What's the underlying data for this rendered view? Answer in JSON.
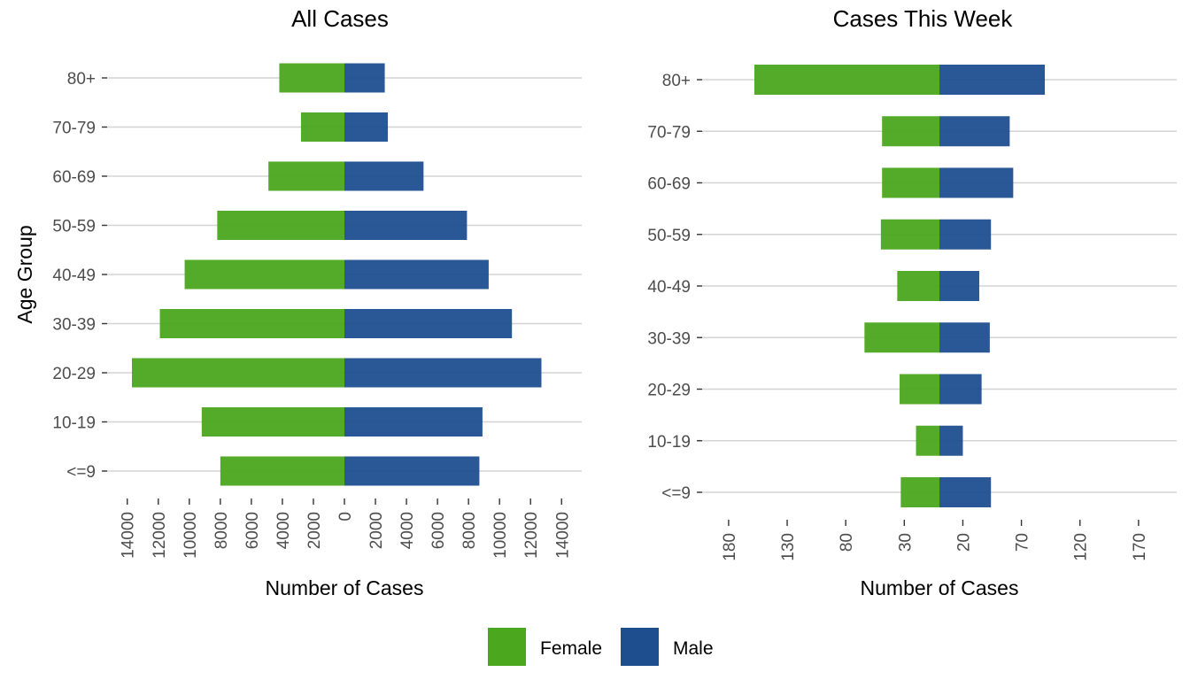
{
  "chart_data": [
    {
      "type": "bar",
      "orientation": "horizontal",
      "layout": "population-pyramid",
      "title": "All Cases",
      "xlabel": "Number of Cases",
      "ylabel": "Age Group",
      "categories": [
        "<=9",
        "10-19",
        "20-29",
        "30-39",
        "40-49",
        "50-59",
        "60-69",
        "70-79",
        "80+"
      ],
      "series": [
        {
          "name": "Female",
          "color": "#4aa71e",
          "side": "left",
          "values": [
            8000,
            9200,
            13700,
            11900,
            10300,
            8200,
            4900,
            2800,
            4200
          ]
        },
        {
          "name": "Male",
          "color": "#1f4e8f",
          "side": "right",
          "values": [
            8700,
            8900,
            12700,
            10800,
            9300,
            7900,
            5100,
            2800,
            2600
          ]
        }
      ],
      "xlim": [
        -15000,
        15000
      ],
      "xticks": [
        {
          "value": -14000,
          "label": "14000"
        },
        {
          "value": -12000,
          "label": "12000"
        },
        {
          "value": -10000,
          "label": "10000"
        },
        {
          "value": -8000,
          "label": "8000"
        },
        {
          "value": -6000,
          "label": "6000"
        },
        {
          "value": -4000,
          "label": "4000"
        },
        {
          "value": -2000,
          "label": "2000"
        },
        {
          "value": 0,
          "label": "0"
        },
        {
          "value": 2000,
          "label": "2000"
        },
        {
          "value": 4000,
          "label": "4000"
        },
        {
          "value": 6000,
          "label": "6000"
        },
        {
          "value": 8000,
          "label": "8000"
        },
        {
          "value": 10000,
          "label": "10000"
        },
        {
          "value": 12000,
          "label": "12000"
        },
        {
          "value": 14000,
          "label": "14000"
        }
      ],
      "grid": true
    },
    {
      "type": "bar",
      "orientation": "horizontal",
      "layout": "population-pyramid",
      "title": "Cases This Week",
      "xlabel": "Number of Cases",
      "ylabel": "",
      "categories": [
        "<=9",
        "10-19",
        "20-29",
        "30-39",
        "40-49",
        "50-59",
        "60-69",
        "70-79",
        "80+"
      ],
      "series": [
        {
          "name": "Female",
          "color": "#4aa71e",
          "side": "left",
          "values": [
            33,
            20,
            34,
            64,
            36,
            50,
            49,
            49,
            158
          ]
        },
        {
          "name": "Male",
          "color": "#1f4e8f",
          "side": "right",
          "values": [
            44,
            20,
            36,
            43,
            34,
            44,
            63,
            60,
            90
          ]
        }
      ],
      "xlim": [
        -185,
        185
      ],
      "xticks": [
        {
          "value": -180,
          "label": "180"
        },
        {
          "value": -130,
          "label": "130"
        },
        {
          "value": -80,
          "label": "80"
        },
        {
          "value": -30,
          "label": "30"
        },
        {
          "value": 20,
          "label": "20"
        },
        {
          "value": 70,
          "label": "70"
        },
        {
          "value": 120,
          "label": "120"
        },
        {
          "value": 170,
          "label": "170"
        }
      ],
      "grid": true
    }
  ],
  "legend": {
    "placement": "bottom",
    "items": [
      {
        "label": "Female",
        "color": "#4aa71e"
      },
      {
        "label": "Male",
        "color": "#1f4e8f"
      }
    ]
  }
}
